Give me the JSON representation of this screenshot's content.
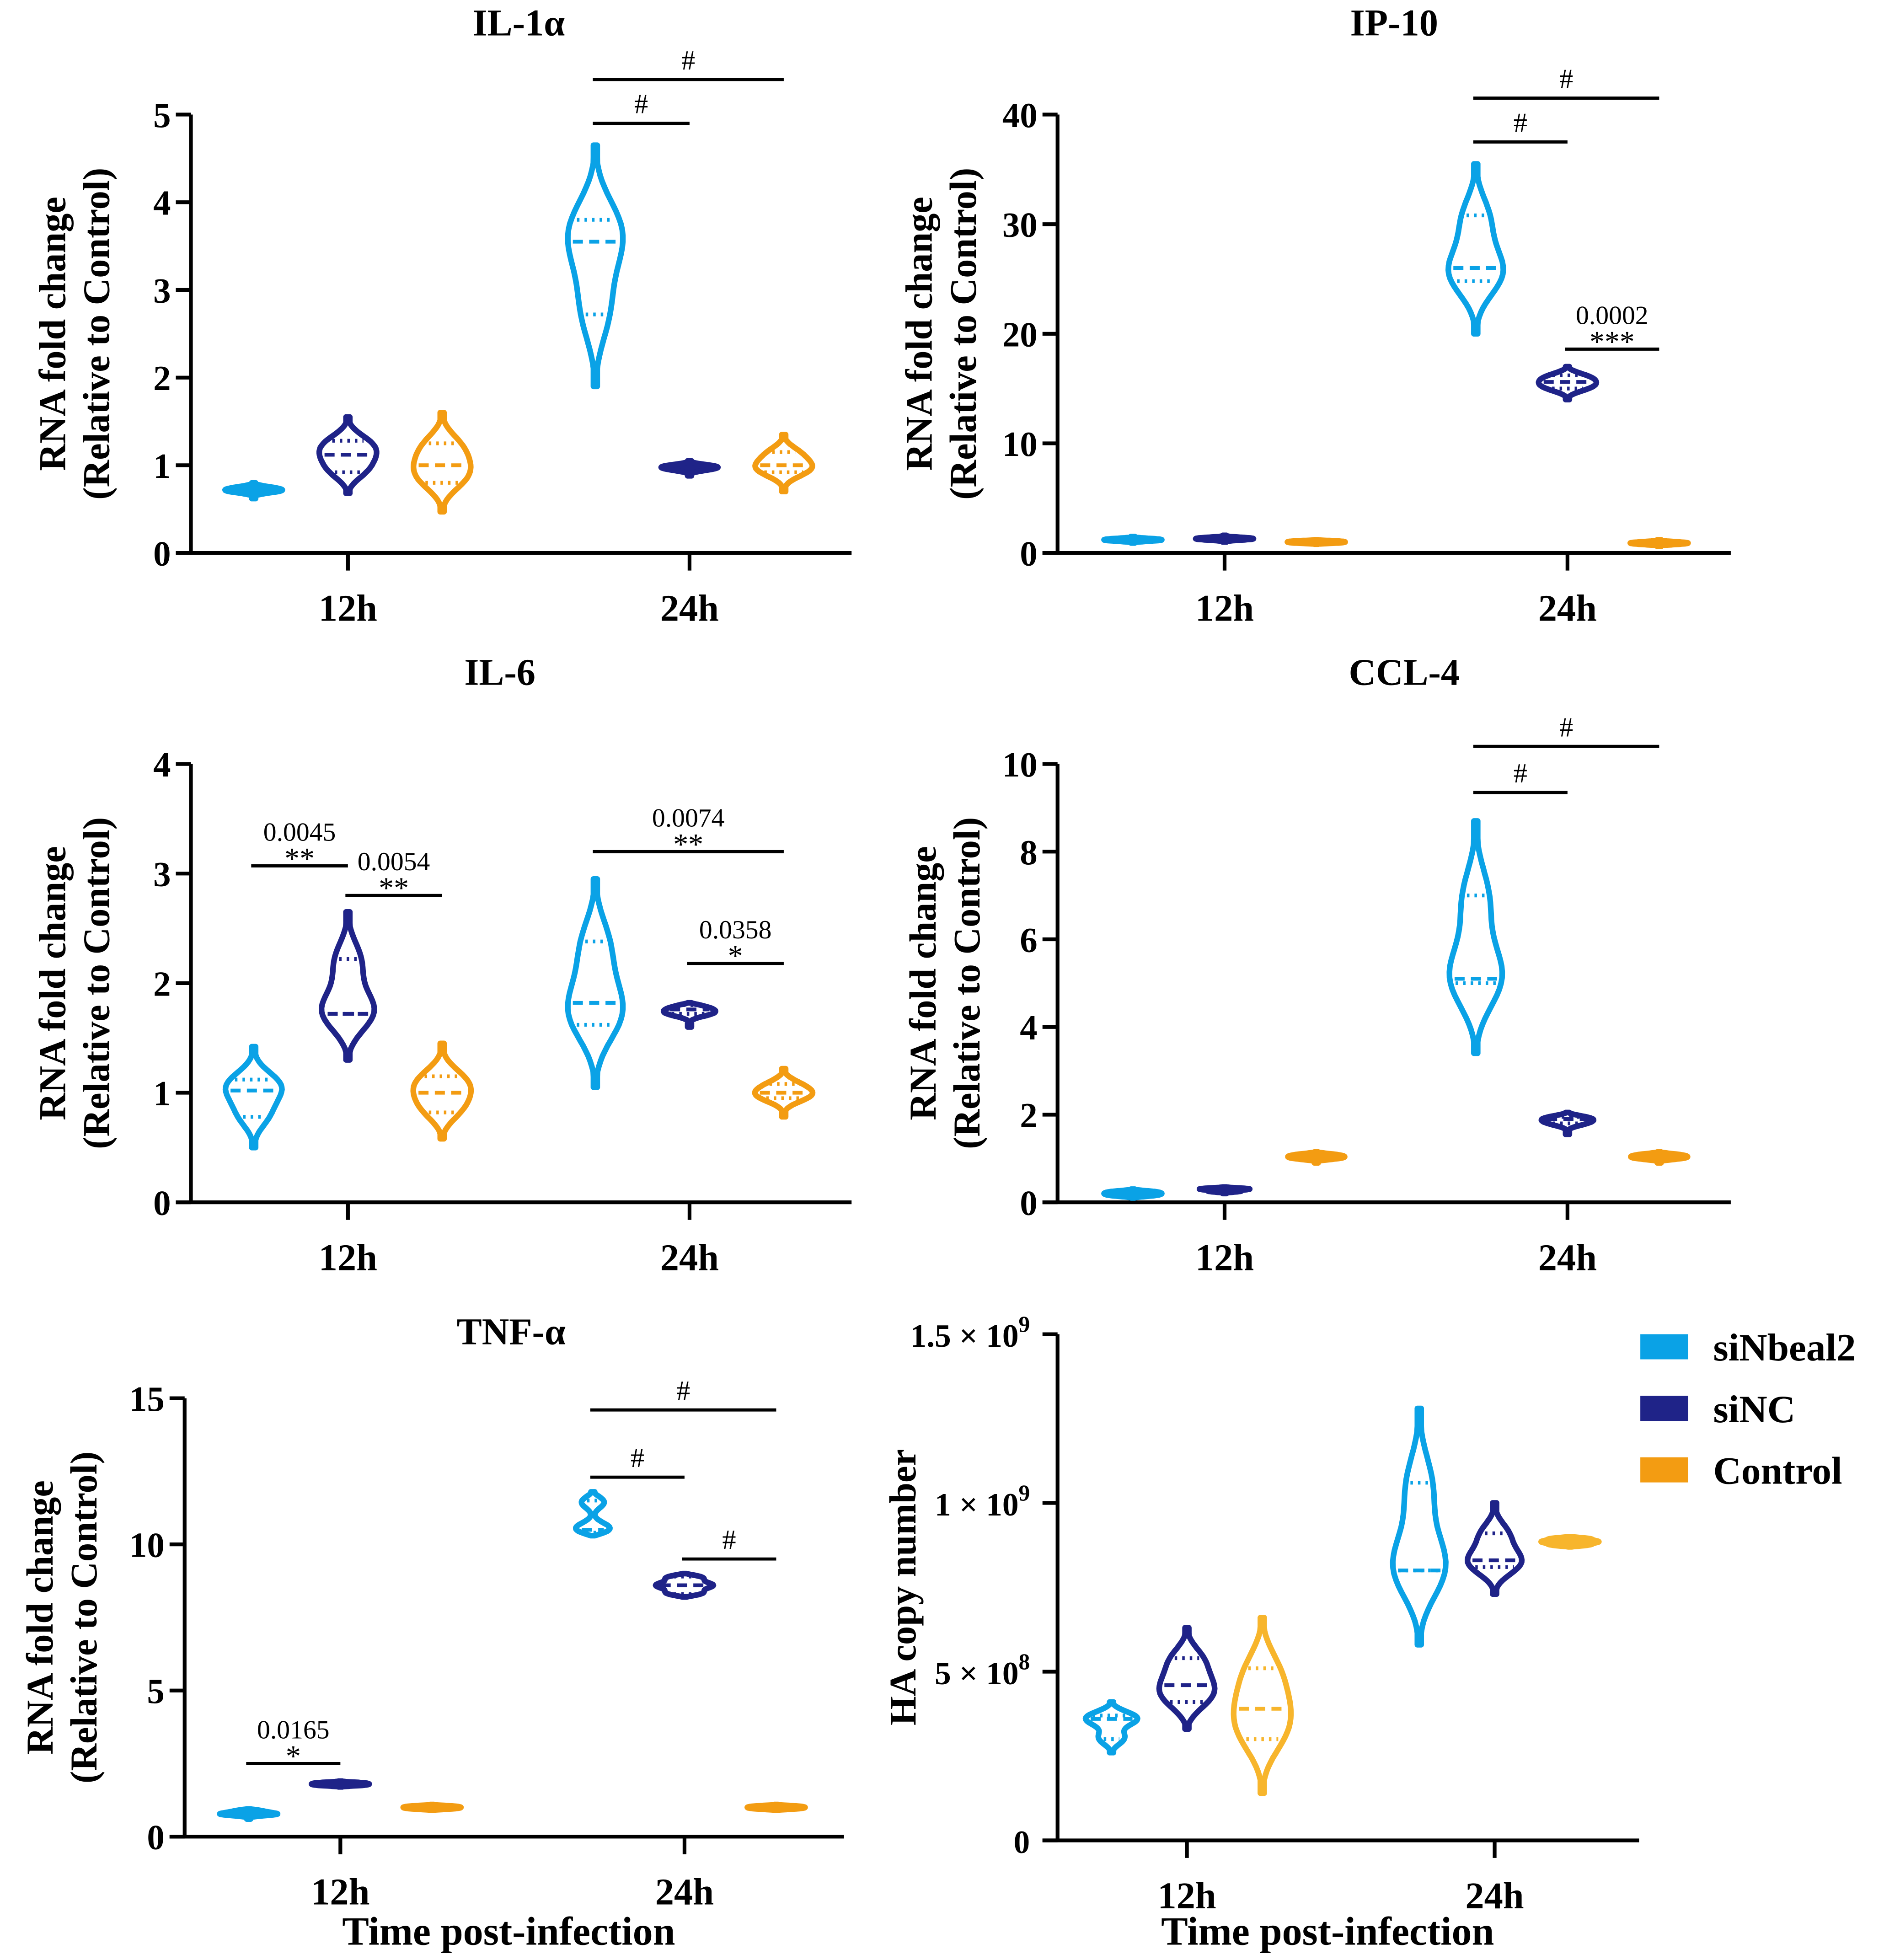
{
  "colors": {
    "siNbeal2": "#0aa2e6",
    "siNC": "#1f2388",
    "Control": "#f39c12",
    "ControlHA": "#f7b52c",
    "axis": "#000000"
  },
  "legend": [
    {
      "label": "siNbeal2",
      "color": "#0aa2e6"
    },
    {
      "label": "siNC",
      "color": "#1f2388"
    },
    {
      "label": "Control",
      "color": "#f39c12"
    }
  ],
  "chart_data": [
    {
      "type": "violin",
      "title": "IL-1α",
      "ylabel": [
        "RNA fold change",
        "(Relative to Control)"
      ],
      "xlabel": "",
      "ylim": [
        0,
        5
      ],
      "yticks": [
        "0",
        "1",
        "2",
        "3",
        "4",
        "5"
      ],
      "categories": [
        "12h",
        "24h"
      ],
      "series_names": [
        "siNbeal2",
        "siNC",
        "Control"
      ],
      "violins": [
        [
          [
            0.72,
            0.7,
            0.75,
            0.62,
            0.8
          ],
          [
            1.12,
            0.92,
            1.28,
            0.68,
            1.55
          ],
          [
            1.0,
            0.8,
            1.25,
            0.47,
            1.6
          ]
        ],
        [
          [
            3.55,
            2.72,
            3.8,
            1.9,
            4.65
          ],
          [
            0.98,
            0.95,
            1.0,
            0.88,
            1.05
          ],
          [
            1.0,
            0.92,
            1.15,
            0.7,
            1.35
          ]
        ]
      ],
      "significance": [
        {
          "cat": 1,
          "from": 0,
          "to": 1,
          "y": 4.9,
          "label": "#",
          "p": ""
        },
        {
          "cat": 1,
          "from": 0,
          "to": 2,
          "y": 5.4,
          "label": "#",
          "p": ""
        }
      ]
    },
    {
      "type": "violin",
      "title": "IP-10",
      "ylabel": [
        "RNA fold change",
        "(Relative to Control)"
      ],
      "xlabel": "",
      "ylim": [
        0,
        40
      ],
      "yticks": [
        "0",
        "10",
        "20",
        "30",
        "40"
      ],
      "categories": [
        "12h",
        "24h"
      ],
      "series_names": [
        "siNbeal2",
        "siNC",
        "Control"
      ],
      "violins": [
        [
          [
            1.2,
            1.1,
            1.3,
            0.9,
            1.5
          ],
          [
            1.3,
            1.2,
            1.4,
            1.0,
            1.6
          ],
          [
            1.0,
            0.9,
            1.1,
            0.8,
            1.2
          ]
        ],
        [
          [
            26.0,
            24.8,
            30.8,
            20.0,
            35.5
          ],
          [
            15.6,
            15.0,
            16.2,
            14.0,
            17.0
          ],
          [
            0.9,
            0.8,
            1.0,
            0.6,
            1.2
          ]
        ]
      ],
      "significance": [
        {
          "cat": 1,
          "from": 0,
          "to": 1,
          "y": 37.5,
          "label": "#",
          "p": ""
        },
        {
          "cat": 1,
          "from": 0,
          "to": 2,
          "y": 41.5,
          "label": "#",
          "p": ""
        },
        {
          "cat": 1,
          "from": 1,
          "to": 2,
          "y": 18.6,
          "label": "***",
          "p": "0.0002"
        }
      ]
    },
    {
      "type": "violin",
      "title": "IL-6",
      "ylabel": [
        "RNA fold change",
        "(Relative to Control)"
      ],
      "xlabel": "",
      "ylim": [
        0,
        4
      ],
      "yticks": [
        "0",
        "1",
        "2",
        "3",
        "4"
      ],
      "categories": [
        "12h",
        "24h"
      ],
      "series_names": [
        "siNbeal2",
        "siNC",
        "Control"
      ],
      "violins": [
        [
          [
            1.02,
            0.78,
            1.12,
            0.5,
            1.42
          ],
          [
            1.72,
            1.72,
            2.22,
            1.3,
            2.65
          ],
          [
            1.0,
            0.82,
            1.15,
            0.58,
            1.45
          ]
        ],
        [
          [
            1.82,
            1.62,
            2.38,
            1.05,
            2.95
          ],
          [
            1.76,
            1.72,
            1.8,
            1.6,
            1.82
          ],
          [
            1.0,
            0.95,
            1.08,
            0.78,
            1.22
          ]
        ]
      ],
      "significance": [
        {
          "cat": 0,
          "from": 0,
          "to": 1,
          "y": 3.07,
          "label": "**",
          "p": "0.0045"
        },
        {
          "cat": 0,
          "from": 1,
          "to": 2,
          "y": 2.8,
          "label": "**",
          "p": "0.0054"
        },
        {
          "cat": 1,
          "from": 0,
          "to": 2,
          "y": 3.2,
          "label": "**",
          "p": "0.0074"
        },
        {
          "cat": 1,
          "from": 1,
          "to": 2,
          "y": 2.18,
          "label": "*",
          "p": "0.0358"
        }
      ]
    },
    {
      "type": "violin",
      "title": "CCL-4",
      "ylabel": [
        "RNA fold change",
        "(Relative to Control)"
      ],
      "xlabel": "",
      "ylim": [
        0,
        10
      ],
      "yticks": [
        "0",
        "2",
        "4",
        "6",
        "8",
        "10"
      ],
      "categories": [
        "12h",
        "24h"
      ],
      "series_names": [
        "siNbeal2",
        "siNC",
        "Control"
      ],
      "violins": [
        [
          [
            0.2,
            0.15,
            0.25,
            0.1,
            0.3
          ],
          [
            0.3,
            0.25,
            0.32,
            0.2,
            0.35
          ],
          [
            1.05,
            1.0,
            1.1,
            0.9,
            1.15
          ]
        ],
        [
          [
            5.1,
            5.0,
            7.0,
            3.4,
            8.7
          ],
          [
            1.9,
            1.8,
            1.95,
            1.55,
            2.05
          ],
          [
            1.05,
            1.0,
            1.1,
            0.9,
            1.15
          ]
        ]
      ],
      "significance": [
        {
          "cat": 1,
          "from": 0,
          "to": 1,
          "y": 9.35,
          "label": "#",
          "p": ""
        },
        {
          "cat": 1,
          "from": 0,
          "to": 2,
          "y": 10.4,
          "label": "#",
          "p": ""
        }
      ]
    },
    {
      "type": "violin",
      "title": "TNF-α",
      "ylabel": [
        "RNA fold change",
        "(Relative to Control)"
      ],
      "xlabel": "Time post-infection",
      "ylim": [
        0,
        15
      ],
      "yticks": [
        "0",
        "5",
        "10",
        "15"
      ],
      "categories": [
        "12h",
        "24h"
      ],
      "series_names": [
        "siNbeal2",
        "siNC",
        "Control"
      ],
      "violins": [
        [
          [
            0.8,
            0.75,
            0.9,
            0.6,
            0.95
          ],
          [
            1.8,
            1.75,
            1.85,
            1.7,
            1.9
          ],
          [
            1.0,
            0.95,
            1.05,
            0.9,
            1.1
          ]
        ],
        [
          [
            10.5,
            10.4,
            11.5,
            10.3,
            11.8
          ],
          [
            8.6,
            8.3,
            8.9,
            8.2,
            9.0
          ],
          [
            1.0,
            0.95,
            1.05,
            0.9,
            1.1
          ]
        ]
      ],
      "significance": [
        {
          "cat": 0,
          "from": 0,
          "to": 1,
          "y": 2.5,
          "label": "*",
          "p": "0.0165"
        },
        {
          "cat": 1,
          "from": 0,
          "to": 1,
          "y": 12.3,
          "label": "#",
          "p": ""
        },
        {
          "cat": 1,
          "from": 1,
          "to": 2,
          "y": 9.5,
          "label": "#",
          "p": ""
        },
        {
          "cat": 1,
          "from": 0,
          "to": 2,
          "y": 14.6,
          "label": "#",
          "p": ""
        }
      ]
    },
    {
      "type": "violin",
      "title": "",
      "ylabel": [
        "HA copy number"
      ],
      "xlabel": "Time post-infection",
      "ylim": [
        0,
        1500000000
      ],
      "yunit": 100000000,
      "yticks": [
        {
          "base": "0",
          "exp": ""
        },
        {
          "base": "5 × 10",
          "exp": "8"
        },
        {
          "base": "1 × 10",
          "exp": "9"
        },
        {
          "base": "1.5 × 10",
          "exp": "9"
        }
      ],
      "categories": [
        "12h",
        "24h"
      ],
      "series_names": [
        "siNbeal2",
        "siNC",
        "Control"
      ],
      "violins": [
        [
          [
            3.6,
            3.0,
            3.7,
            2.6,
            4.1
          ],
          [
            4.6,
            4.1,
            5.4,
            3.3,
            6.3
          ],
          [
            3.9,
            3.0,
            5.1,
            1.4,
            6.6
          ]
        ],
        [
          [
            8.0,
            8.0,
            10.6,
            5.8,
            12.8
          ],
          [
            8.3,
            8.1,
            9.1,
            7.3,
            10.0
          ],
          [
            8.85,
            8.75,
            8.95,
            8.7,
            9.0
          ]
        ]
      ],
      "significance": []
    }
  ]
}
